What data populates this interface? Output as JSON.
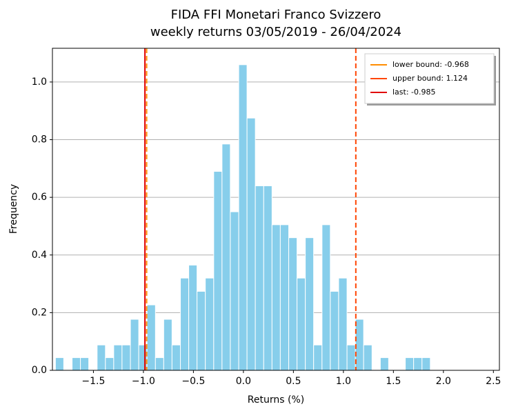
{
  "chart_data": {
    "type": "histogram",
    "title": "FIDA FFI Monetari Franco Svizzero",
    "subtitle": "weekly returns 03/05/2019 - 26/04/2024",
    "x_label": "Returns (%)",
    "y_label": "Frequency",
    "bins": [
      -1.88,
      -1.797,
      -1.713,
      -1.63,
      -1.547,
      -1.463,
      -1.38,
      -1.297,
      -1.214,
      -1.13,
      -1.047,
      -0.964,
      -0.88,
      -0.797,
      -0.714,
      -0.63,
      -0.547,
      -0.464,
      -0.381,
      -0.297,
      -0.214,
      -0.131,
      -0.047,
      0.036,
      0.119,
      0.203,
      0.286,
      0.369,
      0.453,
      0.536,
      0.619,
      0.702,
      0.786,
      0.869,
      0.952,
      1.036,
      1.119,
      1.202,
      1.286,
      1.369,
      1.452,
      1.536,
      1.619,
      1.702,
      1.786,
      1.869
    ],
    "values": [
      0.044,
      0,
      0.044,
      0.044,
      0,
      0.088,
      0.044,
      0.088,
      0.088,
      0.177,
      0.088,
      0.227,
      0.044,
      0.177,
      0.088,
      0.32,
      0.365,
      0.274,
      0.32,
      0.69,
      0.785,
      0.55,
      1.06,
      0.875,
      0.64,
      0.64,
      0.505,
      0.505,
      0.46,
      0.32,
      0.46,
      0.088,
      0.505,
      0.274,
      0.32,
      0.088,
      0.177,
      0.088,
      0,
      0.044,
      0,
      0,
      0.044,
      0.044,
      0.044
    ],
    "color": "#87ceeb",
    "vlines": [
      {
        "label": "lower bound: -0.968",
        "value": -0.968,
        "color": "#ff8c00",
        "dashed": true
      },
      {
        "label": "upper bound: 1.124",
        "value": 1.124,
        "color": "#ff4500",
        "dashed": true
      },
      {
        "label": "last: -0.985",
        "value": -0.985,
        "color": "#e00000",
        "dashed": false
      }
    ],
    "xlim": [
      -1.91,
      2.56
    ],
    "ylim": [
      0,
      1.117
    ],
    "xticks": [
      {
        "value": -1.5,
        "label": "−1.5"
      },
      {
        "value": -1,
        "label": "−1.0"
      },
      {
        "value": -0.5,
        "label": "−0.5"
      },
      {
        "value": 0,
        "label": "0.0"
      },
      0.5,
      {
        "value": 1,
        "label": "1.0"
      },
      1.5,
      {
        "value": 2,
        "label": "2.0"
      },
      2.5
    ],
    "yticks": [
      {
        "value": 0,
        "label": "0.0"
      },
      0.2,
      0.4,
      0.6,
      0.8,
      {
        "value": 1,
        "label": "1.0"
      }
    ],
    "grid": true,
    "legend": "upper right"
  }
}
